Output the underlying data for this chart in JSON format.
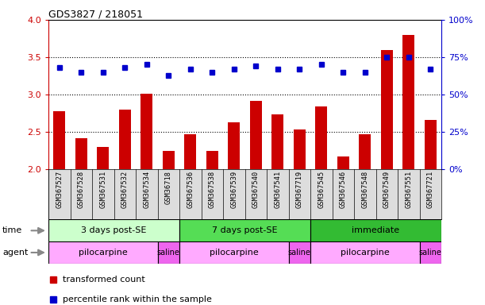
{
  "title": "GDS3827 / 218051",
  "sample_labels": [
    "GSM367527",
    "GSM367528",
    "GSM367531",
    "GSM367532",
    "GSM367534",
    "GSM36718",
    "GSM367536",
    "GSM367538",
    "GSM367539",
    "GSM367540",
    "GSM367541",
    "GSM367719",
    "GSM367545",
    "GSM367546",
    "GSM367548",
    "GSM367549",
    "GSM367551",
    "GSM367721"
  ],
  "transformed_count": [
    2.78,
    2.42,
    2.3,
    2.8,
    3.01,
    2.25,
    2.47,
    2.25,
    2.63,
    2.92,
    2.74,
    2.53,
    2.84,
    2.17,
    2.47,
    3.6,
    3.8,
    2.66
  ],
  "percentile_rank": [
    68,
    65,
    65,
    68,
    70,
    63,
    67,
    65,
    67,
    69,
    67,
    67,
    70,
    65,
    65,
    75,
    75,
    67
  ],
  "ylim_left": [
    2.0,
    4.0
  ],
  "ylim_right": [
    0,
    100
  ],
  "yticks_left": [
    2.0,
    2.5,
    3.0,
    3.5,
    4.0
  ],
  "yticks_right": [
    0,
    25,
    50,
    75,
    100
  ],
  "hlines": [
    2.5,
    3.0,
    3.5
  ],
  "bar_color": "#cc0000",
  "dot_color": "#0000cc",
  "time_groups": [
    {
      "label": "3 days post-SE",
      "start": 0,
      "end": 5,
      "color": "#ccffcc"
    },
    {
      "label": "7 days post-SE",
      "start": 6,
      "end": 11,
      "color": "#55dd55"
    },
    {
      "label": "immediate",
      "start": 12,
      "end": 17,
      "color": "#33bb33"
    }
  ],
  "agent_groups": [
    {
      "label": "pilocarpine",
      "start": 0,
      "end": 4,
      "color": "#ffaaff"
    },
    {
      "label": "saline",
      "start": 5,
      "end": 5,
      "color": "#ee66ee"
    },
    {
      "label": "pilocarpine",
      "start": 6,
      "end": 10,
      "color": "#ffaaff"
    },
    {
      "label": "saline",
      "start": 11,
      "end": 11,
      "color": "#ee66ee"
    },
    {
      "label": "pilocarpine",
      "start": 12,
      "end": 16,
      "color": "#ffaaff"
    },
    {
      "label": "saline",
      "start": 17,
      "end": 17,
      "color": "#ee66ee"
    }
  ],
  "time_label": "time",
  "agent_label": "agent",
  "legend_bar_label": "transformed count",
  "legend_dot_label": "percentile rank within the sample",
  "bg_color": "#ffffff",
  "label_bg_color": "#dddddd",
  "axis_color_left": "#cc0000",
  "axis_color_right": "#0000cc"
}
